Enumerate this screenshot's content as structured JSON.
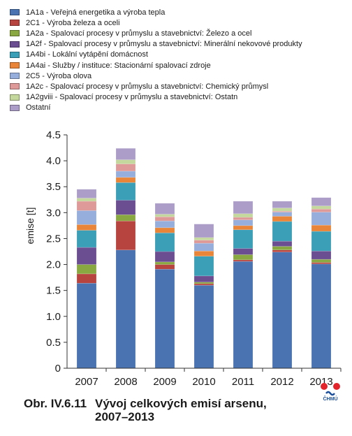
{
  "chart_data": {
    "type": "bar",
    "stacked": true,
    "categories": [
      "2007",
      "2008",
      "2009",
      "2010",
      "2011",
      "2012",
      "2013"
    ],
    "ylabel": "emise [t]",
    "ylim": [
      0,
      4.5
    ],
    "yticks": [
      "0",
      "0.5",
      "1.0",
      "1.5",
      "2.0",
      "2.5",
      "3.0",
      "3.5",
      "4.0",
      "4.5"
    ],
    "ytick_values": [
      0,
      0.5,
      1.0,
      1.5,
      2.0,
      2.5,
      3.0,
      3.5,
      4.0,
      4.5
    ],
    "grid": false,
    "legend_position": "top-left",
    "series": [
      {
        "name": "1A1a - Veřejná energetika a výroba tepla",
        "color": "#4a73b2",
        "values": [
          1.64,
          2.28,
          1.91,
          1.6,
          2.06,
          2.24,
          2.01
        ]
      },
      {
        "name": "2C1 - Výroba železa a oceli",
        "color": "#b8443f",
        "values": [
          0.18,
          0.56,
          0.09,
          0.03,
          0.03,
          0.04,
          0.03
        ]
      },
      {
        "name": "1A2a - Spalovací procesy v průmyslu a stavebnictví: Železo a ocel",
        "color": "#8aa842",
        "values": [
          0.18,
          0.12,
          0.05,
          0.03,
          0.1,
          0.07,
          0.06
        ]
      },
      {
        "name": "1A2f - Spalovací procesy v průmyslu a stavebnictví: Minerální nekovové produkty",
        "color": "#6b4d92",
        "values": [
          0.33,
          0.28,
          0.2,
          0.12,
          0.12,
          0.1,
          0.16
        ]
      },
      {
        "name": "1A4bi - Lokální vytápění domácnost",
        "color": "#3b9fb7",
        "values": [
          0.33,
          0.34,
          0.36,
          0.38,
          0.36,
          0.38,
          0.38
        ]
      },
      {
        "name": "1A4ai - Služby / instituce: Stacionární spalovací zdroje",
        "color": "#e88538",
        "values": [
          0.11,
          0.1,
          0.1,
          0.1,
          0.08,
          0.1,
          0.12
        ]
      },
      {
        "name": "2C5 - Výroba olova",
        "color": "#95aedb",
        "values": [
          0.27,
          0.12,
          0.13,
          0.15,
          0.11,
          0.08,
          0.25
        ]
      },
      {
        "name": "1A2c - Spalovací procesy v průmyslu a stavebnictví: Chemický průmysl",
        "color": "#dd9a98",
        "values": [
          0.18,
          0.14,
          0.08,
          0.06,
          0.05,
          0.02,
          0.06
        ]
      },
      {
        "name": "1A2gviii - Spalovací procesy v průmyslu a stavebnictví: Ostatn",
        "color": "#c4d79c",
        "values": [
          0.06,
          0.08,
          0.05,
          0.05,
          0.07,
          0.06,
          0.06
        ]
      },
      {
        "name": "Ostatní",
        "color": "#ab9dc7",
        "values": [
          0.17,
          0.22,
          0.21,
          0.26,
          0.24,
          0.13,
          0.16
        ]
      }
    ]
  },
  "caption": {
    "number": "Obr. IV.6.11",
    "title_line1": "Vývoj celkových emisí arsenu,",
    "title_line2": "2007–2013"
  },
  "logo": {
    "text": "ČHMÚ",
    "colors": [
      "#e3242b",
      "#1b4f9c"
    ]
  }
}
